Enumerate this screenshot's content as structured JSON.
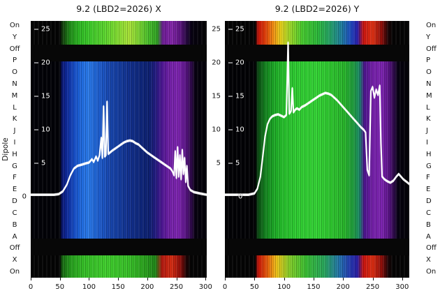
{
  "labels": {
    "dipole_axis": "Dipole",
    "rows": [
      "On",
      "Y",
      "Off",
      "P",
      "O",
      "N",
      "M",
      "L",
      "K",
      "J",
      "I",
      "H",
      "G",
      "F",
      "E",
      "D",
      "C",
      "B",
      "A",
      "Off",
      "X",
      "On"
    ]
  },
  "gap_ticks": [
    "25",
    "20",
    "15",
    "10",
    "5"
  ],
  "chart_data": [
    {
      "type": "heatmap+line",
      "title": "9.2 (LBD2=2026) X",
      "xlabel": "",
      "ylabel": "Dipole",
      "xlim": [
        0,
        302
      ],
      "ylim": [
        0,
        25
      ],
      "grid": false,
      "xticks": [
        "0",
        "50",
        "100",
        "150",
        "200",
        "250",
        "300"
      ],
      "yticks_inside": [
        "25",
        "20",
        "15",
        "10",
        "5"
      ],
      "ytick_zero": "0",
      "bands": {
        "top_strip": {
          "stops": [
            [
              0,
              "#040404"
            ],
            [
              0.165,
              "#040404"
            ],
            [
              0.18,
              "#123c0c"
            ],
            [
              0.22,
              "#1f8818"
            ],
            [
              0.27,
              "#2bb422"
            ],
            [
              0.33,
              "#3cc82a"
            ],
            [
              0.42,
              "#5ad42e"
            ],
            [
              0.5,
              "#86dc32"
            ],
            [
              0.56,
              "#a8e038"
            ],
            [
              0.61,
              "#7ed432"
            ],
            [
              0.67,
              "#46bc2a"
            ],
            [
              0.72,
              "#2f9e22"
            ],
            [
              0.75,
              "#6a1a92"
            ],
            [
              0.8,
              "#8226a8"
            ],
            [
              0.85,
              "#5c1480"
            ],
            [
              0.89,
              "#200838"
            ],
            [
              0.915,
              "#060110"
            ],
            [
              1,
              "#040404"
            ]
          ]
        },
        "gap1": "#070707",
        "main": {
          "stops": [
            [
              0,
              "#020207"
            ],
            [
              0.165,
              "#020207"
            ],
            [
              0.18,
              "#0a1878"
            ],
            [
              0.21,
              "#0f2da0"
            ],
            [
              0.25,
              "#1750c8"
            ],
            [
              0.29,
              "#1f6ade"
            ],
            [
              0.33,
              "#2b7ae8"
            ],
            [
              0.36,
              "#2168d8"
            ],
            [
              0.4,
              "#1c58c8"
            ],
            [
              0.44,
              "#1848b0"
            ],
            [
              0.5,
              "#143c9e"
            ],
            [
              0.56,
              "#112f8c"
            ],
            [
              0.62,
              "#0e277c"
            ],
            [
              0.67,
              "#0c2070"
            ],
            [
              0.71,
              "#231b80"
            ],
            [
              0.745,
              "#4c1692"
            ],
            [
              0.79,
              "#7220a6"
            ],
            [
              0.84,
              "#7c24ae"
            ],
            [
              0.88,
              "#5a1486"
            ],
            [
              0.915,
              "#2a0944"
            ],
            [
              0.935,
              "#070210"
            ],
            [
              1,
              "#020207"
            ]
          ]
        },
        "gap2": "#070707",
        "bottom_strip": {
          "stops": [
            [
              0,
              "#040404"
            ],
            [
              0.165,
              "#040404"
            ],
            [
              0.18,
              "#176812"
            ],
            [
              0.23,
              "#27a01e"
            ],
            [
              0.3,
              "#34bc26"
            ],
            [
              0.42,
              "#3fcc2c"
            ],
            [
              0.55,
              "#38c028"
            ],
            [
              0.65,
              "#2aa01e"
            ],
            [
              0.71,
              "#1f8418"
            ],
            [
              0.745,
              "#b01810"
            ],
            [
              0.8,
              "#d42c12"
            ],
            [
              0.85,
              "#8e0e0a"
            ],
            [
              0.885,
              "#1c0405"
            ],
            [
              0.91,
              "#050404"
            ],
            [
              1,
              "#040404"
            ]
          ]
        }
      },
      "line": {
        "name": "beam-profile-x",
        "color": "#ffffff",
        "points": [
          [
            0,
            0.3
          ],
          [
            20,
            0.3
          ],
          [
            40,
            0.3
          ],
          [
            48,
            0.4
          ],
          [
            55,
            0.8
          ],
          [
            62,
            1.8
          ],
          [
            68,
            3.2
          ],
          [
            74,
            4.2
          ],
          [
            80,
            4.6
          ],
          [
            88,
            4.8
          ],
          [
            95,
            5.0
          ],
          [
            100,
            5.1
          ],
          [
            105,
            5.6
          ],
          [
            108,
            5.2
          ],
          [
            112,
            6.0
          ],
          [
            115,
            5.4
          ],
          [
            118,
            6.2
          ],
          [
            121,
            8.8
          ],
          [
            123,
            5.8
          ],
          [
            125,
            13.5
          ],
          [
            127,
            6.0
          ],
          [
            129,
            6.2
          ],
          [
            131,
            14.2
          ],
          [
            133,
            6.4
          ],
          [
            136,
            6.6
          ],
          [
            140,
            6.9
          ],
          [
            145,
            7.2
          ],
          [
            150,
            7.5
          ],
          [
            155,
            7.8
          ],
          [
            160,
            8.1
          ],
          [
            165,
            8.3
          ],
          [
            170,
            8.4
          ],
          [
            175,
            8.3
          ],
          [
            180,
            8.0
          ],
          [
            185,
            7.8
          ],
          [
            190,
            7.4
          ],
          [
            195,
            7.0
          ],
          [
            200,
            6.6
          ],
          [
            205,
            6.3
          ],
          [
            210,
            6.0
          ],
          [
            215,
            5.7
          ],
          [
            220,
            5.4
          ],
          [
            225,
            5.1
          ],
          [
            230,
            4.8
          ],
          [
            235,
            4.5
          ],
          [
            240,
            4.2
          ],
          [
            243,
            3.8
          ],
          [
            246,
            3.2
          ],
          [
            248,
            6.8
          ],
          [
            250,
            2.8
          ],
          [
            252,
            7.4
          ],
          [
            254,
            3.0
          ],
          [
            256,
            6.2
          ],
          [
            258,
            2.6
          ],
          [
            260,
            7.0
          ],
          [
            262,
            3.4
          ],
          [
            264,
            5.8
          ],
          [
            266,
            2.2
          ],
          [
            268,
            4.6
          ],
          [
            270,
            1.6
          ],
          [
            274,
            1.0
          ],
          [
            280,
            0.7
          ],
          [
            290,
            0.5
          ],
          [
            296,
            0.4
          ],
          [
            302,
            0.3
          ]
        ]
      }
    },
    {
      "type": "heatmap+line",
      "title": "9.2 (LBD2=2026) Y",
      "xlabel": "",
      "ylabel": "Dipole",
      "xlim": [
        0,
        312
      ],
      "ylim": [
        0,
        25
      ],
      "grid": false,
      "xticks": [
        "0",
        "50",
        "100",
        "150",
        "200",
        "250",
        "300"
      ],
      "yticks_inside": [
        "25",
        "20",
        "15",
        "10",
        "5"
      ],
      "ytick_zero": "0",
      "bands": {
        "top_strip": {
          "stops": [
            [
              0,
              "#040404"
            ],
            [
              0.165,
              "#040404"
            ],
            [
              0.18,
              "#c81208"
            ],
            [
              0.22,
              "#e0400a"
            ],
            [
              0.26,
              "#ee8812"
            ],
            [
              0.3,
              "#e8cc1a"
            ],
            [
              0.35,
              "#a0d626"
            ],
            [
              0.42,
              "#46c82e"
            ],
            [
              0.5,
              "#2cb838"
            ],
            [
              0.57,
              "#24a066"
            ],
            [
              0.63,
              "#1e7e9a"
            ],
            [
              0.68,
              "#1e4cc0"
            ],
            [
              0.72,
              "#2a1ca8"
            ],
            [
              0.75,
              "#c81410"
            ],
            [
              0.8,
              "#e03214"
            ],
            [
              0.85,
              "#8e0e0a"
            ],
            [
              0.885,
              "#1c0406"
            ],
            [
              0.91,
              "#050404"
            ],
            [
              1,
              "#040404"
            ]
          ]
        },
        "gap1": "#070707",
        "main": {
          "stops": [
            [
              0,
              "#020205"
            ],
            [
              0.165,
              "#020205"
            ],
            [
              0.18,
              "#0a4a12"
            ],
            [
              0.22,
              "#148420"
            ],
            [
              0.27,
              "#1daa26"
            ],
            [
              0.32,
              "#27c02c"
            ],
            [
              0.4,
              "#2fcc32"
            ],
            [
              0.5,
              "#33d234"
            ],
            [
              0.58,
              "#2dc42e"
            ],
            [
              0.65,
              "#27b22a"
            ],
            [
              0.7,
              "#1f9a40"
            ],
            [
              0.73,
              "#1a8868"
            ],
            [
              0.755,
              "#49148a"
            ],
            [
              0.8,
              "#7420a8"
            ],
            [
              0.85,
              "#7c24b0"
            ],
            [
              0.89,
              "#581284"
            ],
            [
              0.92,
              "#280942"
            ],
            [
              0.94,
              "#060210"
            ],
            [
              1,
              "#020205"
            ]
          ]
        },
        "gap2": "#070707",
        "bottom_strip": {
          "stops": [
            [
              0,
              "#040404"
            ],
            [
              0.165,
              "#040404"
            ],
            [
              0.18,
              "#c81208"
            ],
            [
              0.23,
              "#e45c0c"
            ],
            [
              0.28,
              "#ecc018"
            ],
            [
              0.35,
              "#84cc28"
            ],
            [
              0.44,
              "#38bc32"
            ],
            [
              0.54,
              "#28a45c"
            ],
            [
              0.62,
              "#2272aa"
            ],
            [
              0.68,
              "#2438b0"
            ],
            [
              0.72,
              "#2a1ca0"
            ],
            [
              0.75,
              "#c81410"
            ],
            [
              0.8,
              "#dc2e12"
            ],
            [
              0.85,
              "#8e0e0a"
            ],
            [
              0.885,
              "#1c0406"
            ],
            [
              0.91,
              "#050404"
            ],
            [
              1,
              "#040404"
            ]
          ]
        }
      },
      "line": {
        "name": "beam-profile-y",
        "color": "#ffffff",
        "points": [
          [
            0,
            0.3
          ],
          [
            20,
            0.3
          ],
          [
            40,
            0.3
          ],
          [
            50,
            0.5
          ],
          [
            55,
            1.2
          ],
          [
            60,
            3.0
          ],
          [
            64,
            6.0
          ],
          [
            68,
            9.0
          ],
          [
            72,
            10.8
          ],
          [
            76,
            11.6
          ],
          [
            80,
            12.0
          ],
          [
            85,
            12.2
          ],
          [
            90,
            12.3
          ],
          [
            95,
            12.1
          ],
          [
            100,
            11.9
          ],
          [
            104,
            12.2
          ],
          [
            107,
            23.0
          ],
          [
            109,
            12.4
          ],
          [
            112,
            12.8
          ],
          [
            114,
            16.2
          ],
          [
            116,
            12.6
          ],
          [
            119,
            13.0
          ],
          [
            122,
            13.2
          ],
          [
            126,
            13.0
          ],
          [
            130,
            13.4
          ],
          [
            135,
            13.6
          ],
          [
            140,
            13.9
          ],
          [
            145,
            14.2
          ],
          [
            150,
            14.5
          ],
          [
            155,
            14.8
          ],
          [
            160,
            15.1
          ],
          [
            165,
            15.3
          ],
          [
            170,
            15.5
          ],
          [
            175,
            15.4
          ],
          [
            180,
            15.2
          ],
          [
            185,
            14.8
          ],
          [
            190,
            14.4
          ],
          [
            195,
            13.9
          ],
          [
            200,
            13.4
          ],
          [
            205,
            12.9
          ],
          [
            210,
            12.4
          ],
          [
            215,
            11.9
          ],
          [
            220,
            11.4
          ],
          [
            225,
            10.9
          ],
          [
            230,
            10.4
          ],
          [
            235,
            10.0
          ],
          [
            238,
            9.6
          ],
          [
            241,
            4.0
          ],
          [
            244,
            3.2
          ],
          [
            247,
            15.8
          ],
          [
            250,
            16.4
          ],
          [
            253,
            14.8
          ],
          [
            256,
            16.0
          ],
          [
            259,
            15.2
          ],
          [
            262,
            16.6
          ],
          [
            264,
            8.0
          ],
          [
            266,
            3.0
          ],
          [
            270,
            2.6
          ],
          [
            275,
            2.3
          ],
          [
            280,
            2.1
          ],
          [
            285,
            2.4
          ],
          [
            290,
            3.0
          ],
          [
            294,
            3.4
          ],
          [
            298,
            3.0
          ],
          [
            302,
            2.6
          ],
          [
            308,
            2.2
          ],
          [
            312,
            1.9
          ]
        ]
      }
    }
  ]
}
